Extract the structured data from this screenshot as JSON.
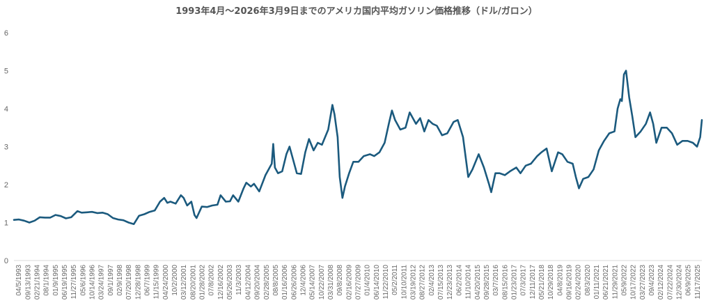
{
  "chart_data": {
    "type": "line",
    "title": "1993年4月～2026年3月9日までのアメリカ国内平均ガソリン価格推移（ドル/ガロン）",
    "xlabel": "",
    "ylabel": "",
    "ylim": [
      0,
      6
    ],
    "yticks": [
      0,
      1,
      2,
      3,
      4,
      5,
      6
    ],
    "grid": false,
    "legend": "none",
    "line_color": "#1b5a7e",
    "x_tick_labels": [
      "04/5/1993",
      "09/13/1993",
      "02/21/1994",
      "08/1/1994",
      "01/9/1995",
      "06/19/1995",
      "11/27/1995",
      "05/6/1996",
      "10/14/1996",
      "03/24/1997",
      "09/1/1997",
      "02/9/1998",
      "07/20/1998",
      "12/28/1998",
      "06/7/1999",
      "11/15/1999",
      "04/24/2000",
      "10/2/2000",
      "03/12/2001",
      "08/20/2001",
      "01/28/2002",
      "07/8/2002",
      "12/16/2002",
      "05/26/2003",
      "11/3/2003",
      "04/12/2004",
      "09/20/2004",
      "02/28/2005",
      "08/8/2005",
      "01/16/2006",
      "06/26/2006",
      "12/4/2006",
      "05/14/2007",
      "10/22/2007",
      "03/31/2008",
      "09/8/2008",
      "02/16/2009",
      "07/27/2009",
      "01/4/2010",
      "06/14/2010",
      "11/22/2010",
      "05/2/2011",
      "10/10/2011",
      "03/19/2012",
      "08/27/2012",
      "02/4/2013",
      "07/15/2013",
      "12/23/2013",
      "06/2/2014",
      "11/10/2014",
      "04/20/2015",
      "09/28/2015",
      "03/7/2016",
      "08/15/2016",
      "01/23/2017",
      "07/3/2017",
      "12/11/2017",
      "05/21/2018",
      "10/29/2018",
      "04/8/2019",
      "09/16/2019",
      "02/24/2020",
      "08/3/2020",
      "01/11/2021",
      "06/21/2021",
      "11/29/2021",
      "05/9/2022",
      "10/17/2022",
      "03/27/2023",
      "09/4/2023",
      "02/12/2024",
      "07/22/2024",
      "12/30/2024",
      "06/9/2025",
      "11/17/2025"
    ],
    "series": [
      {
        "x": [
          1993.26,
          1993.5,
          1993.75,
          1994.0,
          1994.25,
          1994.5,
          1994.75,
          1995.0,
          1995.25,
          1995.5,
          1995.75,
          1996.0,
          1996.3,
          1996.5,
          1996.75,
          1997.0,
          1997.25,
          1997.5,
          1997.75,
          1998.0,
          1998.25,
          1998.5,
          1998.75,
          1999.0,
          1999.25,
          1999.5,
          1999.75,
          2000.0,
          2000.25,
          2000.45,
          2000.6,
          2000.75,
          2001.0,
          2001.25,
          2001.38,
          2001.55,
          2001.75,
          2001.9,
          2002.0,
          2002.25,
          2002.5,
          2002.75,
          2003.0,
          2003.15,
          2003.4,
          2003.6,
          2003.75,
          2004.0,
          2004.25,
          2004.38,
          2004.6,
          2004.75,
          2005.0,
          2005.3,
          2005.6,
          2005.67,
          2005.75,
          2005.9,
          2006.1,
          2006.3,
          2006.45,
          2006.6,
          2006.8,
          2007.0,
          2007.2,
          2007.38,
          2007.6,
          2007.8,
          2008.0,
          2008.3,
          2008.5,
          2008.6,
          2008.75,
          2008.85,
          2008.98,
          2009.1,
          2009.3,
          2009.5,
          2009.75,
          2010.0,
          2010.3,
          2010.5,
          2010.75,
          2011.0,
          2011.2,
          2011.35,
          2011.5,
          2011.75,
          2012.0,
          2012.2,
          2012.5,
          2012.7,
          2012.9,
          2013.1,
          2013.3,
          2013.5,
          2013.75,
          2014.0,
          2014.3,
          2014.5,
          2014.75,
          2015.0,
          2015.2,
          2015.5,
          2015.75,
          2016.0,
          2016.1,
          2016.3,
          2016.5,
          2016.75,
          2017.0,
          2017.3,
          2017.5,
          2017.75,
          2018.0,
          2018.3,
          2018.5,
          2018.75,
          2019.0,
          2019.3,
          2019.5,
          2019.75,
          2020.0,
          2020.15,
          2020.3,
          2020.5,
          2020.75,
          2021.0,
          2021.25,
          2021.5,
          2021.75,
          2022.0,
          2022.15,
          2022.28,
          2022.35,
          2022.45,
          2022.55,
          2022.7,
          2022.85,
          2023.0,
          2023.25,
          2023.5,
          2023.7,
          2023.85,
          2024.0,
          2024.25,
          2024.5,
          2024.75,
          2025.0,
          2025.25,
          2025.5,
          2025.75,
          2025.95,
          2026.1,
          2026.18
        ],
        "y": [
          1.07,
          1.08,
          1.05,
          1.0,
          1.05,
          1.14,
          1.13,
          1.13,
          1.2,
          1.17,
          1.11,
          1.14,
          1.3,
          1.26,
          1.27,
          1.28,
          1.25,
          1.26,
          1.22,
          1.12,
          1.08,
          1.06,
          1.0,
          0.96,
          1.18,
          1.22,
          1.28,
          1.32,
          1.55,
          1.65,
          1.52,
          1.55,
          1.5,
          1.72,
          1.65,
          1.45,
          1.55,
          1.2,
          1.12,
          1.42,
          1.41,
          1.45,
          1.47,
          1.72,
          1.55,
          1.56,
          1.72,
          1.55,
          1.9,
          2.05,
          1.95,
          2.02,
          1.82,
          2.25,
          2.55,
          3.07,
          2.45,
          2.3,
          2.35,
          2.8,
          3.0,
          2.7,
          2.3,
          2.28,
          2.85,
          3.2,
          2.9,
          3.1,
          3.05,
          3.45,
          4.1,
          3.85,
          3.25,
          2.2,
          1.65,
          1.95,
          2.3,
          2.6,
          2.6,
          2.75,
          2.8,
          2.75,
          2.85,
          3.1,
          3.6,
          3.95,
          3.7,
          3.45,
          3.5,
          3.9,
          3.6,
          3.75,
          3.4,
          3.7,
          3.6,
          3.55,
          3.3,
          3.35,
          3.65,
          3.7,
          3.25,
          2.2,
          2.4,
          2.8,
          2.45,
          2.0,
          1.8,
          2.3,
          2.3,
          2.25,
          2.35,
          2.45,
          2.3,
          2.5,
          2.55,
          2.75,
          2.85,
          2.95,
          2.35,
          2.85,
          2.8,
          2.6,
          2.55,
          2.2,
          1.9,
          2.15,
          2.2,
          2.4,
          2.9,
          3.15,
          3.35,
          3.4,
          4.0,
          4.25,
          4.2,
          4.9,
          5.0,
          4.3,
          3.8,
          3.25,
          3.4,
          3.6,
          3.9,
          3.6,
          3.1,
          3.5,
          3.5,
          3.35,
          3.05,
          3.15,
          3.15,
          3.1,
          3.0,
          3.25,
          3.7
        ]
      }
    ]
  }
}
